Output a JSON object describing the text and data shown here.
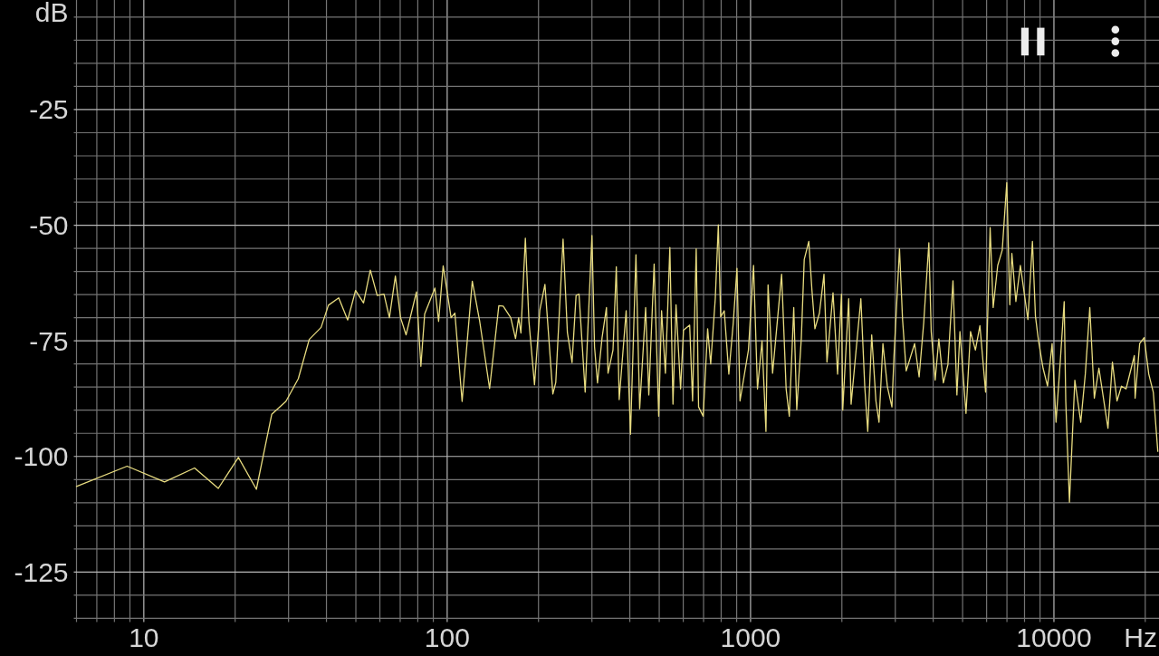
{
  "chart_data": {
    "type": "line",
    "xlabel": "Hz",
    "ylabel": "dB",
    "log": "x",
    "grid": true,
    "color": "#e8dc80",
    "xlim": [
      6,
      22200
    ],
    "ylim": [
      -135,
      -1.3
    ],
    "xticks": [
      {
        "value": 6,
        "label": null
      },
      {
        "value": 7,
        "label": null
      },
      {
        "value": 8,
        "label": null
      },
      {
        "value": 9,
        "label": null
      },
      10,
      {
        "value": 20,
        "label": null
      },
      {
        "value": 30,
        "label": null
      },
      {
        "value": 40,
        "label": null
      },
      {
        "value": 50,
        "label": null
      },
      {
        "value": 60,
        "label": null
      },
      {
        "value": 70,
        "label": null
      },
      {
        "value": 80,
        "label": null
      },
      {
        "value": 90,
        "label": null
      },
      100,
      {
        "value": 200,
        "label": null
      },
      {
        "value": 300,
        "label": null
      },
      {
        "value": 400,
        "label": null
      },
      {
        "value": 500,
        "label": null
      },
      {
        "value": 600,
        "label": null
      },
      {
        "value": 700,
        "label": null
      },
      {
        "value": 800,
        "label": null
      },
      {
        "value": 900,
        "label": null
      },
      1000,
      {
        "value": 2000,
        "label": null
      },
      {
        "value": 3000,
        "label": null
      },
      {
        "value": 4000,
        "label": null
      },
      {
        "value": 5000,
        "label": null
      },
      {
        "value": 6000,
        "label": null
      },
      {
        "value": 7000,
        "label": null
      },
      {
        "value": 8000,
        "label": null
      },
      {
        "value": 9000,
        "label": null
      },
      10000,
      {
        "value": 20000,
        "label": null
      }
    ],
    "yticks": [
      {
        "value": -135,
        "label": null
      },
      {
        "value": -130,
        "label": null
      },
      -125,
      {
        "value": -120,
        "label": null
      },
      {
        "value": -115,
        "label": null
      },
      {
        "value": -110,
        "label": null
      },
      {
        "value": -105,
        "label": null
      },
      -100,
      {
        "value": -95,
        "label": null
      },
      {
        "value": -90,
        "label": null
      },
      {
        "value": -85,
        "label": null
      },
      {
        "value": -80,
        "label": null
      },
      -75,
      {
        "value": -70,
        "label": null
      },
      {
        "value": -65,
        "label": null
      },
      {
        "value": -60,
        "label": null
      },
      {
        "value": -55,
        "label": null
      },
      -50,
      {
        "value": -45,
        "label": null
      },
      {
        "value": -40,
        "label": null
      },
      {
        "value": -35,
        "label": null
      },
      {
        "value": -30,
        "label": null
      },
      -25,
      {
        "value": -20,
        "label": null
      },
      {
        "value": -15,
        "label": null
      },
      {
        "value": -10,
        "label": null
      },
      {
        "value": -5,
        "label": null
      }
    ],
    "x": [
      6,
      8.81,
      11.7,
      14.7,
      17.6,
      20.5,
      23.5,
      26.4,
      29.4,
      32.3,
      35.1,
      38.4,
      40.6,
      43.9,
      47.0,
      49.9,
      53.0,
      55.8,
      58.8,
      61.9,
      64.5,
      67.5,
      70.2,
      73.2,
      79.2,
      81.9,
      84.3,
      91.1,
      93.7,
      97.0,
      103,
      106,
      112,
      121,
      128,
      138,
      148,
      153,
      162,
      168,
      172,
      175,
      181,
      186,
      194,
      202,
      210,
      223,
      228,
      241,
      249,
      258,
      266,
      272,
      285,
      300,
      306,
      313,
      324,
      335,
      339,
      352,
      361,
      369,
      389,
      402,
      419,
      431,
      451,
      462,
      481,
      498,
      509,
      524,
      542,
      555,
      568,
      588,
      601,
      630,
      644,
      662,
      674,
      698,
      722,
      739,
      765,
      783,
      797,
      819,
      848,
      877,
      902,
      923,
      984,
      1023,
      1054,
      1091,
      1124,
      1142,
      1182,
      1266,
      1310,
      1342,
      1388,
      1420,
      1470,
      1503,
      1556,
      1593,
      1630,
      1687,
      1746,
      1786,
      1870,
      1936,
      1994,
      2013,
      2106,
      2145,
      2310,
      2379,
      2434,
      2508,
      2590,
      2651,
      2731,
      2826,
      2924,
      2971,
      3097,
      3170,
      3259,
      3474,
      3595,
      3722,
      3870,
      3940,
      4060,
      4175,
      4320,
      4472,
      4648,
      4789,
      4900,
      5131,
      5310,
      5510,
      5702,
      5953,
      6162,
      6306,
      6527,
      6755,
      6992,
      7154,
      7267,
      7492,
      7752,
      8208,
      8495,
      8692,
      8897,
      9207,
      9528,
      9863,
      10160,
      10490,
      10810,
      10940,
      11250,
      11720,
      12260,
      12690,
      13130,
      13590,
      14070,
      15070,
      15590,
      16140,
      16700,
      17290,
      18410,
      18520,
      19170,
      19840,
      20540,
      21260,
      22000
    ],
    "values": [
      -106.5,
      -102.1,
      -105.5,
      -102.5,
      -106.9,
      -100.2,
      -107.1,
      -90.9,
      -88.1,
      -83.2,
      -74.7,
      -72.1,
      -67.3,
      -65.7,
      -70.5,
      -64.1,
      -66.8,
      -59.7,
      -65.2,
      -64.9,
      -70.0,
      -61.0,
      -70.0,
      -73.7,
      -64.4,
      -80.5,
      -69.2,
      -63.6,
      -70.8,
      -58.8,
      -70.0,
      -69.0,
      -88.1,
      -62.1,
      -70.8,
      -85.3,
      -67.4,
      -67.5,
      -70.0,
      -74.5,
      -70.0,
      -73.3,
      -52.8,
      -70.8,
      -84.5,
      -68.4,
      -62.8,
      -86.5,
      -84.0,
      -53.0,
      -73.2,
      -79.7,
      -65.2,
      -64.9,
      -86.1,
      -52.2,
      -76.3,
      -84.1,
      -74.3,
      -67.8,
      -82.0,
      -77.0,
      -59.0,
      -87.7,
      -68.5,
      -95.2,
      -56.4,
      -89.7,
      -67.8,
      -86.7,
      -58.4,
      -91.3,
      -68.5,
      -82.0,
      -54.8,
      -88.7,
      -67.2,
      -85.4,
      -72.7,
      -71.6,
      -88.0,
      -55.1,
      -89.3,
      -91.3,
      -72.4,
      -80.0,
      -65.9,
      -49.9,
      -69.8,
      -68.5,
      -82.2,
      -71.1,
      -59.3,
      -88.0,
      -77.0,
      -58.7,
      -85.4,
      -75.0,
      -94.6,
      -62.9,
      -82.0,
      -60.6,
      -85.4,
      -91.3,
      -67.8,
      -89.9,
      -74.5,
      -57.4,
      -53.5,
      -63.9,
      -72.4,
      -69.0,
      -60.6,
      -79.6,
      -64.6,
      -82.2,
      -64.9,
      -90.0,
      -65.9,
      -88.7,
      -65.9,
      -84.8,
      -94.6,
      -73.7,
      -88.0,
      -92.6,
      -75.6,
      -85.0,
      -89.3,
      -78.2,
      -55.1,
      -70.4,
      -81.5,
      -75.6,
      -82.8,
      -71.1,
      -53.8,
      -73.0,
      -83.5,
      -74.6,
      -84.1,
      -80.2,
      -62.0,
      -86.7,
      -73.0,
      -90.7,
      -73.0,
      -77.0,
      -71.7,
      -86.1,
      -50.5,
      -67.8,
      -58.7,
      -55.4,
      -40.8,
      -67.2,
      -56.1,
      -66.5,
      -58.7,
      -70.4,
      -53.5,
      -69.7,
      -75.0,
      -80.9,
      -84.8,
      -75.6,
      -92.6,
      -79.6,
      -66.5,
      -88.0,
      -109.9,
      -83.5,
      -92.6,
      -82.2,
      -67.8,
      -87.4,
      -80.9,
      -93.9,
      -79.6,
      -88.0,
      -84.8,
      -85.4,
      -78.2,
      -87.4,
      -75.6,
      -74.3,
      -82.2,
      -86.1,
      -98.9
    ]
  }
}
